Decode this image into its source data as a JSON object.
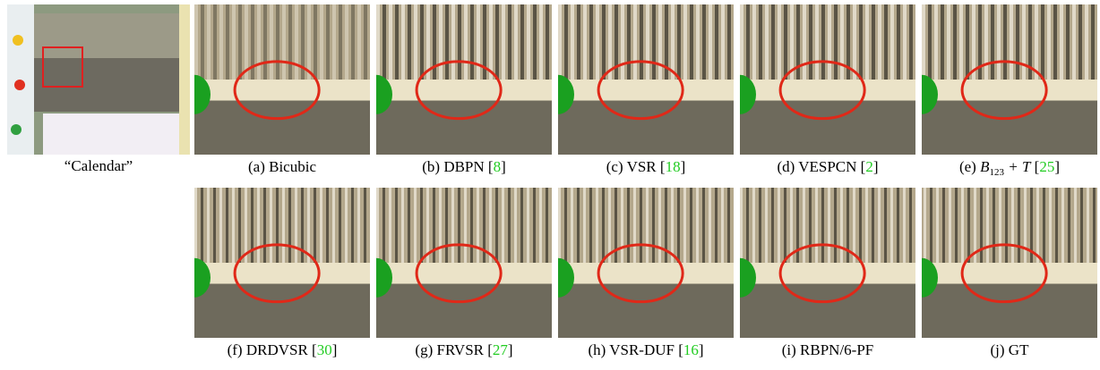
{
  "figure": {
    "main": {
      "caption": "“Calendar”"
    },
    "citation_format": {
      "open": "[",
      "close": "]"
    },
    "panels": [
      {
        "label": "(a) Bicubic"
      },
      {
        "label": "(b) DBPN",
        "ref": "8"
      },
      {
        "label": "(c) VSR",
        "ref": "18"
      },
      {
        "label": "(d) VESPCN",
        "ref": "2"
      },
      {
        "label": "(e)",
        "math": [
          "B",
          "123",
          "+ T"
        ],
        "ref": "25"
      },
      {
        "label": "(f) DRDVSR",
        "ref": "30"
      },
      {
        "label": "(g) FRVSR",
        "ref": "27"
      },
      {
        "label": "(h) VSR-DUF",
        "ref": "16"
      },
      {
        "label": "(i) RBPN/6-PF"
      },
      {
        "label": "(j) GT"
      }
    ]
  }
}
